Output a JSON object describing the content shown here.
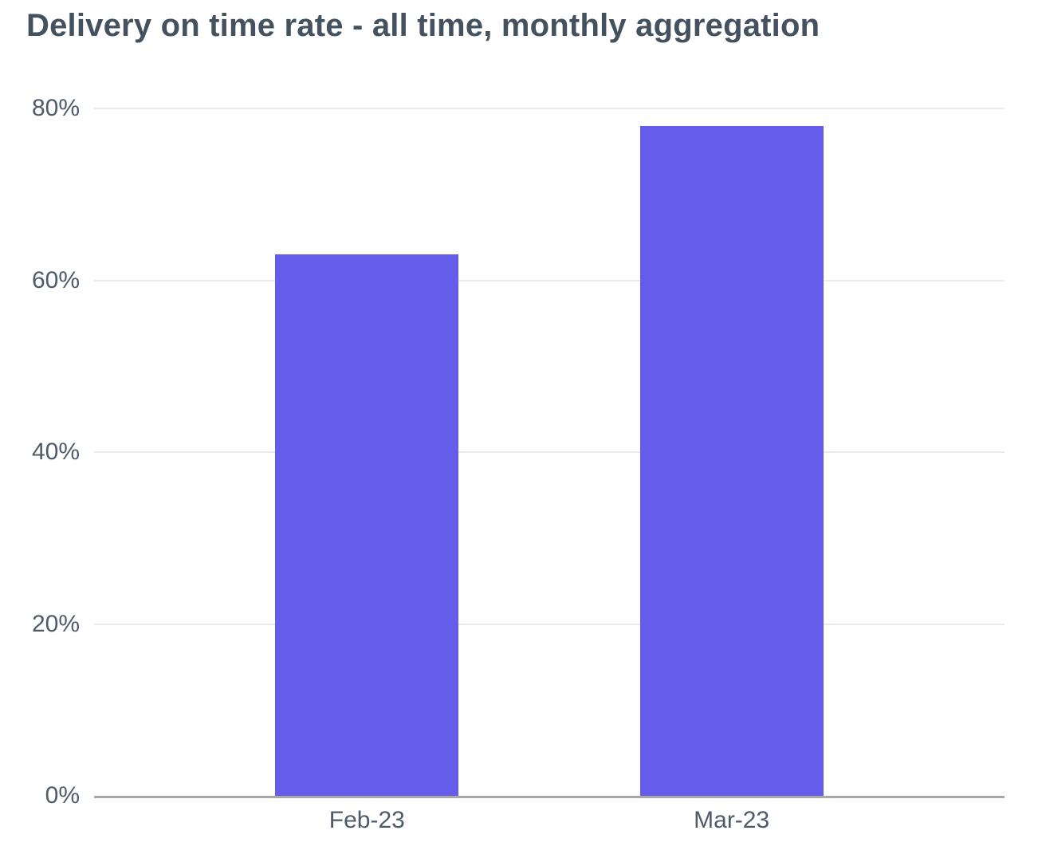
{
  "title": "Delivery on time rate - all time, monthly aggregation",
  "colors": {
    "bar": "#655CEB",
    "gridline": "#E8EAEC",
    "axis_line": "#A5A7A9",
    "title_text": "#44525F",
    "tick_text": "#4D5B6B"
  },
  "chart_data": {
    "type": "bar",
    "title": "Delivery on time rate - all time, monthly aggregation",
    "categories": [
      "Feb-23",
      "Mar-23"
    ],
    "values": [
      63,
      78
    ],
    "value_unit": "%",
    "xlabel": "",
    "ylabel": "",
    "ylim": [
      0,
      80
    ],
    "yticks": [
      0,
      20,
      40,
      60,
      80
    ],
    "ytick_labels": [
      "0%",
      "20%",
      "40%",
      "60%",
      "80%"
    ],
    "grid": true,
    "legend": false,
    "bar_color": "#655CEB"
  }
}
